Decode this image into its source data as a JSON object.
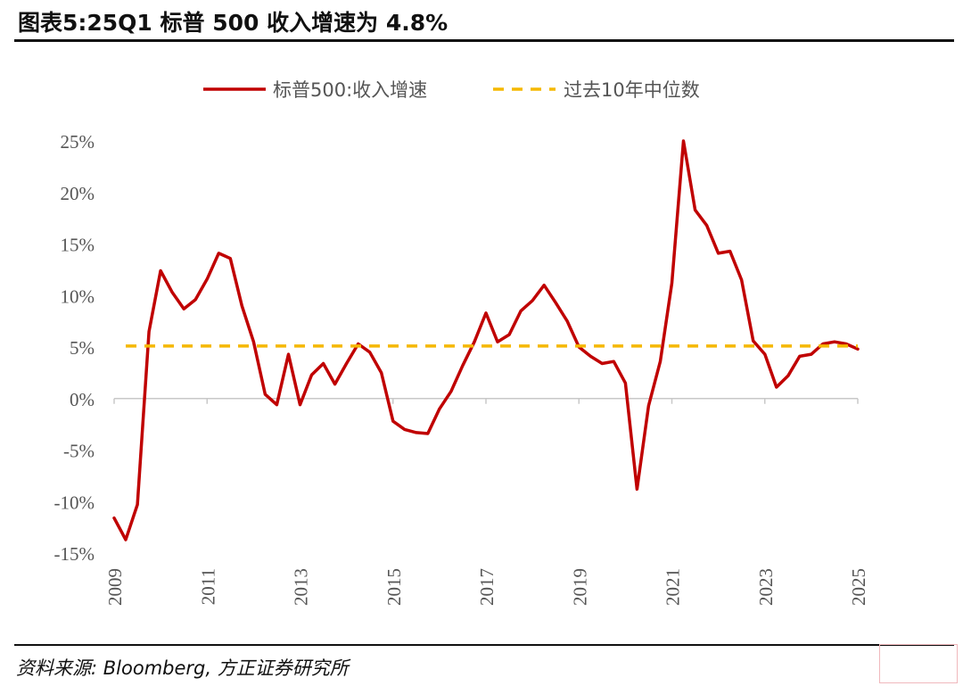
{
  "header": {
    "title": "图表5:25Q1 标普 500 收入增速为 4.8%"
  },
  "source": {
    "text": "资料来源: Bloomberg, 方正证券研究所"
  },
  "colors": {
    "series_line": "#c00000",
    "median_line": "#f5b800",
    "axis": "#c8c8c8",
    "text": "#555555"
  },
  "chart_data": {
    "type": "line",
    "ylim": [
      -15,
      25
    ],
    "yticks": [
      -15,
      -10,
      -5,
      0,
      5,
      10,
      15,
      20,
      25
    ],
    "ytick_format": "percent",
    "xlim": [
      2009.0,
      2025.0
    ],
    "xticks": [
      "2009",
      "2011",
      "2013",
      "2015",
      "2017",
      "2019",
      "2021",
      "2023",
      "2025"
    ],
    "legend_position": "top-center",
    "series": [
      {
        "name": "标普500:收入增速",
        "x": [
          2009.0,
          2009.25,
          2009.5,
          2009.75,
          2010.0,
          2010.25,
          2010.5,
          2010.75,
          2011.0,
          2011.25,
          2011.5,
          2011.75,
          2012.0,
          2012.25,
          2012.5,
          2012.75,
          2013.0,
          2013.25,
          2013.5,
          2013.75,
          2014.0,
          2014.25,
          2014.5,
          2014.75,
          2015.0,
          2015.25,
          2015.5,
          2015.75,
          2016.0,
          2016.25,
          2016.5,
          2016.75,
          2017.0,
          2017.25,
          2017.5,
          2017.75,
          2018.0,
          2018.25,
          2018.5,
          2018.75,
          2019.0,
          2019.25,
          2019.5,
          2019.75,
          2020.0,
          2020.25,
          2020.5,
          2020.75,
          2021.0,
          2021.25,
          2021.5,
          2021.75,
          2022.0,
          2022.25,
          2022.5,
          2022.75,
          2023.0,
          2023.25,
          2023.5,
          2023.75,
          2024.0,
          2024.25,
          2024.5,
          2024.75,
          2025.0
        ],
        "values": [
          -11.6,
          -13.7,
          -10.3,
          6.5,
          12.4,
          10.3,
          8.7,
          9.6,
          11.6,
          14.1,
          13.6,
          9.0,
          5.5,
          0.4,
          -0.6,
          4.3,
          -0.6,
          2.3,
          3.4,
          1.4,
          3.4,
          5.3,
          4.5,
          2.5,
          -2.2,
          -3.0,
          -3.3,
          -3.4,
          -1.0,
          0.7,
          3.2,
          5.5,
          8.3,
          5.5,
          6.2,
          8.5,
          9.5,
          11.0,
          9.3,
          7.5,
          5.0,
          4.1,
          3.4,
          3.6,
          1.5,
          -8.8,
          -0.7,
          3.6,
          11.2,
          25.0,
          18.3,
          16.8,
          14.1,
          14.3,
          11.5,
          5.6,
          4.3,
          1.1,
          2.2,
          4.1,
          4.3,
          5.3,
          5.5,
          5.3,
          4.8
        ]
      },
      {
        "name": "过去10年中位数",
        "x": [
          2009.25,
          2025.0
        ],
        "values": [
          5.1,
          5.1
        ],
        "style": "dashed"
      }
    ]
  }
}
